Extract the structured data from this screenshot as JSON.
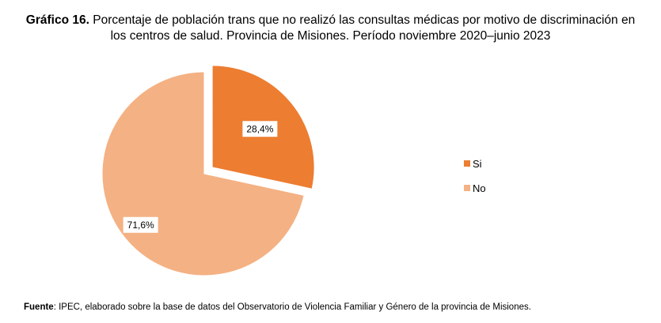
{
  "title": {
    "label": "Gráfico 16.",
    "line1_rest": "Porcentaje de población trans que no realizó las consultas médicas por motivo de discriminación en",
    "line2": "los centros de salud.  Provincia de Misiones. Período noviembre 2020–junio 2023"
  },
  "colors": {
    "si": "#ED7D31",
    "no": "#F4B183"
  },
  "chart_data": {
    "type": "pie",
    "title": "Porcentaje de población trans que no realizó las consultas médicas por motivo de discriminación en los centros de salud. Provincia de Misiones. Período noviembre 2020–junio 2023",
    "categories": [
      "Si",
      "No"
    ],
    "values": [
      28.4,
      71.6
    ],
    "value_labels": [
      "28,4%",
      "71,6%"
    ],
    "legend_position": "right",
    "exploded": "Si"
  },
  "source": {
    "label": "Fuente",
    "text": ": IPEC, elaborado sobre la base de datos del Observatorio de Violencia Familiar y Género de la provincia de Misiones."
  }
}
